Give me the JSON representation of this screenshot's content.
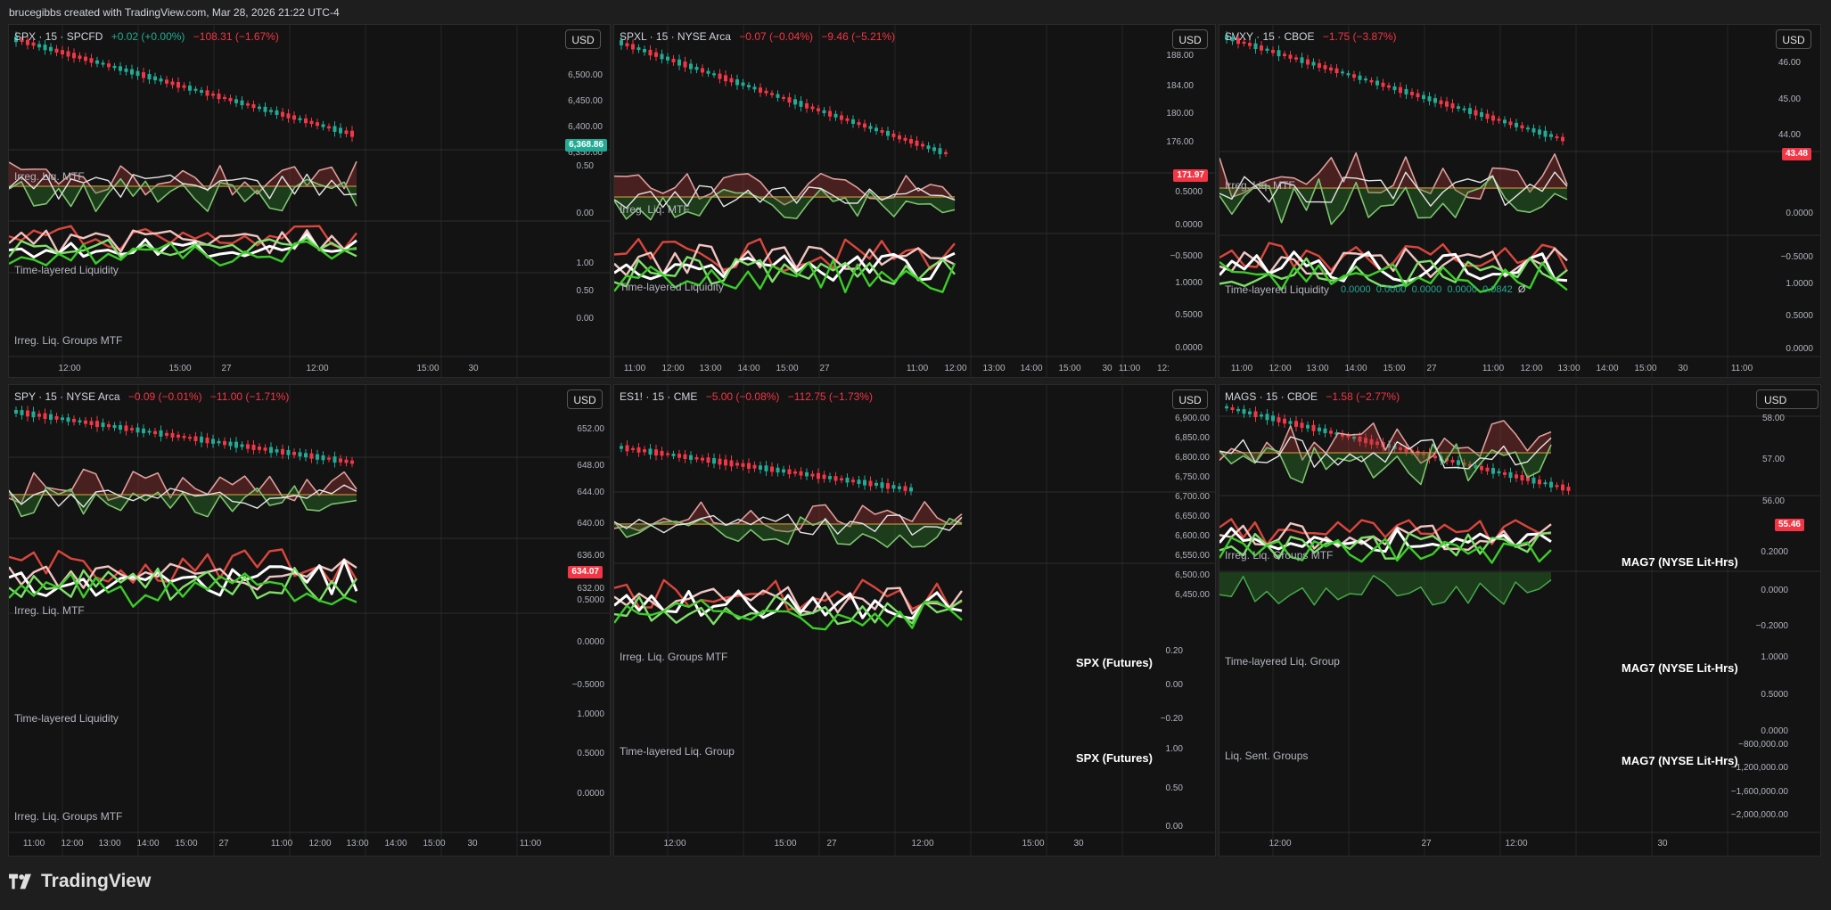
{
  "header": {
    "attribution": "brucegibbs created with TradingView.com, Mar 28, 2026 21:22 UTC-4"
  },
  "brand": {
    "name": "TradingView",
    "logo_icon": "tradingview-logo-icon"
  },
  "colors": {
    "up": "#22ab94",
    "down": "#f23645",
    "bg": "#131313",
    "grid": "#242424",
    "neutral_line": "#e8a33a"
  },
  "currency": "USD",
  "panels": [
    {
      "symbol": "SPX · 15 · SPCFD",
      "chg1": "+0.02 (+0.00%)",
      "chg1_dir": "pos",
      "chg2": "−108.31 (−1.67%)",
      "chg2_dir": "neg",
      "last_price": "6,368.86",
      "last_dir": "pos",
      "price_ticks": [
        "6,500.00",
        "6,450.00",
        "6,400.00",
        "6,350.00"
      ],
      "ind1": {
        "label": "Irreg. Liq. MTF",
        "ticks": [
          "0.50",
          "0.00"
        ]
      },
      "ind2": {
        "label": "Time-layered Liquidity",
        "ticks": [
          "1.00",
          "0.50",
          "0.00"
        ]
      },
      "ind3": {
        "label": "Irreg. Liq. Groups MTF"
      },
      "x_ticks": [
        "12:00",
        "15:00",
        "27",
        "12:00",
        "15:00",
        "30"
      ]
    },
    {
      "symbol": "SPXL · 15 · NYSE Arca",
      "chg1": "−0.07 (−0.04%)",
      "chg1_dir": "neg",
      "chg2": "−9.46 (−5.21%)",
      "chg2_dir": "neg",
      "last_price": "171.97",
      "last_dir": "neg",
      "price_ticks": [
        "188.00",
        "184.00",
        "180.00",
        "176.00"
      ],
      "ind1": {
        "label": "Irreg. Liq. MTF",
        "ticks": [
          "0.5000",
          "0.0000",
          "−0.5000"
        ]
      },
      "ind2": {
        "label": "Time-layered Liquidity",
        "ticks": [
          "1.0000",
          "0.5000",
          "0.0000"
        ]
      },
      "x_ticks": [
        "11:00",
        "12:00",
        "13:00",
        "14:00",
        "15:00",
        "27",
        "11:00",
        "12:00",
        "13:00",
        "14:00",
        "15:00",
        "30",
        "11:00",
        "12:"
      ]
    },
    {
      "symbol": "SVXY · 15 · CBOE",
      "chg1": "−1.75 (−3.87%)",
      "chg1_dir": "neg",
      "last_price": "43.48",
      "last_dir": "neg",
      "price_ticks": [
        "46.00",
        "45.00",
        "44.00"
      ],
      "ind1": {
        "label": "Irreg. Liq. MTF",
        "ticks": [
          "0.0000",
          "−0.5000"
        ]
      },
      "ind2": {
        "label": "Time-layered Liquidity",
        "values": [
          "0.0000",
          "0.0000",
          "0.0000",
          "0.0000",
          "0.0842",
          "Ø"
        ],
        "ticks": [
          "1.0000",
          "0.5000",
          "0.0000"
        ]
      },
      "x_ticks": [
        "11:00",
        "12:00",
        "13:00",
        "14:00",
        "15:00",
        "27",
        "11:00",
        "12:00",
        "13:00",
        "14:00",
        "15:00",
        "30",
        "11:00"
      ]
    },
    {
      "symbol": "SPY · 15 · NYSE Arca",
      "chg1": "−0.09 (−0.01%)",
      "chg1_dir": "neg",
      "chg2": "−11.00 (−1.71%)",
      "chg2_dir": "neg",
      "last_price": "634.07",
      "last_dir": "neg",
      "price_ticks": [
        "652.00",
        "648.00",
        "644.00",
        "640.00",
        "636.00",
        "632.00"
      ],
      "ind1": {
        "label": "Irreg. Liq. MTF",
        "ticks": [
          "0.5000",
          "0.0000",
          "−0.5000"
        ]
      },
      "ind2": {
        "label": "Time-layered Liquidity",
        "ticks": [
          "1.0000",
          "0.5000",
          "0.0000"
        ]
      },
      "ind3": {
        "label": "Irreg. Liq. Groups MTF"
      },
      "x_ticks": [
        "11:00",
        "12:00",
        "13:00",
        "14:00",
        "15:00",
        "27",
        "11:00",
        "12:00",
        "13:00",
        "14:00",
        "15:00",
        "30",
        "11:00"
      ]
    },
    {
      "symbol": "ES1! · 15 · CME",
      "chg1": "−5.00 (−0.08%)",
      "chg1_dir": "neg",
      "chg2": "−112.75 (−1.73%)",
      "chg2_dir": "neg",
      "price_ticks": [
        "6,900.00",
        "6,850.00",
        "6,800.00",
        "6,750.00",
        "6,700.00",
        "6,650.00",
        "6,600.00",
        "6,550.00",
        "6,500.00",
        "6,450.00"
      ],
      "ind1": {
        "label": "Irreg. Liq. Groups MTF",
        "title": "SPX (Futures)",
        "ticks": [
          "0.20",
          "0.00",
          "−0.20"
        ]
      },
      "ind2": {
        "label": "Time-layered Liq. Group",
        "title": "SPX (Futures)",
        "ticks": [
          "1.00",
          "0.50",
          "0.00"
        ]
      },
      "x_ticks": [
        "12:00",
        "15:00",
        "27",
        "12:00",
        "15:00",
        "30"
      ]
    },
    {
      "symbol": "MAGS · 15 · CBOE",
      "chg1": "−1.58 (−2.77%)",
      "chg1_dir": "neg",
      "last_price": "55.46",
      "last_dir": "neg",
      "price_ticks": [
        "58.00",
        "57.00",
        "56.00"
      ],
      "ind1": {
        "label": "Irreg. Liq. Groups MTF",
        "title": "MAG7 (NYSE Lit-Hrs)",
        "ticks": [
          "0.2000",
          "0.0000",
          "−0.2000"
        ]
      },
      "ind2": {
        "label": "Time-layered Liq. Group",
        "title": "MAG7 (NYSE Lit-Hrs)",
        "ticks": [
          "1.0000",
          "0.5000",
          "0.0000"
        ]
      },
      "ind3": {
        "label": "Liq. Sent. Groups",
        "title": "MAG7 (NYSE Lit-Hrs)",
        "ticks": [
          "−800,000.00",
          "−1,200,000.00",
          "−1,600,000.00",
          "−2,000,000.00"
        ]
      },
      "x_ticks": [
        "12:00",
        "27",
        "12:00",
        "30"
      ]
    }
  ]
}
